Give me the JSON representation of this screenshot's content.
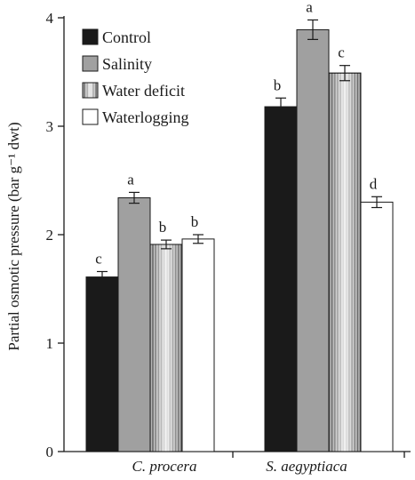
{
  "chart_data": {
    "type": "bar",
    "ylabel": "Partial osmotic pressure (bar g⁻¹ dwt)",
    "ylim": [
      0,
      4
    ],
    "yticks": [
      0,
      1,
      2,
      3,
      4
    ],
    "categories": [
      "C. procera",
      "S. aegyptiaca"
    ],
    "legend_position": "top-left",
    "series": [
      {
        "name": "Control",
        "color": "#1a1a1a",
        "pattern": "solid",
        "values": [
          1.61,
          3.18
        ],
        "errors": [
          0.05,
          0.08
        ],
        "letters": [
          "c",
          "b"
        ]
      },
      {
        "name": "Salinity",
        "color": "#a0a0a0",
        "pattern": "solid",
        "values": [
          2.34,
          3.89
        ],
        "errors": [
          0.05,
          0.09
        ],
        "letters": [
          "a",
          "a"
        ]
      },
      {
        "name": "Water deficit",
        "color": "#b8b8b8",
        "pattern": "vertical-gradient-stripes",
        "values": [
          1.91,
          3.49
        ],
        "errors": [
          0.04,
          0.07
        ],
        "letters": [
          "b",
          "c"
        ]
      },
      {
        "name": "Waterlogging",
        "color": "#ffffff",
        "pattern": "solid",
        "values": [
          1.96,
          2.3
        ],
        "errors": [
          0.04,
          0.05
        ],
        "letters": [
          "b",
          "d"
        ]
      }
    ]
  }
}
